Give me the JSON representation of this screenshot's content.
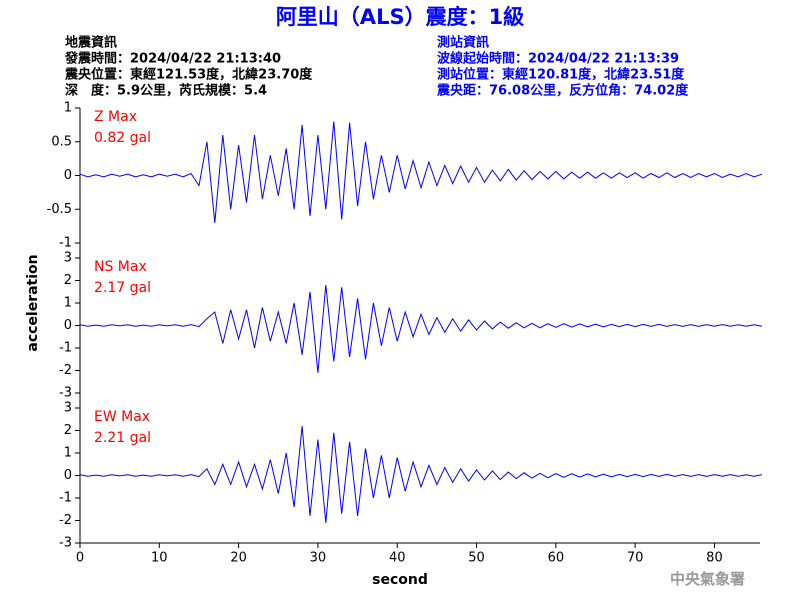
{
  "header": {
    "title": "阿里山（ALS）震度：1級",
    "left": [
      "地震資訊",
      "發震時間：2024/04/22 21:13:40",
      "震央位置：東經121.53度，北緯23.70度",
      "深　度：5.9公里，芮氏規模：5.4"
    ],
    "right": [
      "測站資訊",
      "波線起始時間：2024/04/22 21:13:39",
      "測站位置：東經120.81度，北緯23.51度",
      "震央距：76.08公里，反方位角：74.02度"
    ]
  },
  "ylabel": "acceleration",
  "xlabel": "second",
  "footer": "中央氣象署",
  "chart_data": [
    {
      "type": "line",
      "title": "Z Max",
      "subtitle": "0.82 gal",
      "color": "#0000ff",
      "xlim": [
        0,
        86.5
      ],
      "ylim": [
        -1,
        1
      ],
      "yticks": [
        -1,
        -0.5,
        0,
        0.5,
        1
      ],
      "x": [
        0,
        1,
        2,
        3,
        4,
        5,
        6,
        7,
        8,
        9,
        10,
        11,
        12,
        13,
        14,
        15,
        16,
        17,
        18,
        19,
        20,
        21,
        22,
        23,
        24,
        25,
        26,
        27,
        28,
        29,
        30,
        31,
        32,
        33,
        34,
        35,
        36,
        37,
        38,
        39,
        40,
        41,
        42,
        43,
        44,
        45,
        46,
        47,
        48,
        49,
        50,
        51,
        52,
        53,
        54,
        55,
        56,
        57,
        58,
        59,
        60,
        61,
        62,
        63,
        64,
        65,
        66,
        67,
        68,
        69,
        70,
        71,
        72,
        73,
        74,
        75,
        76,
        77,
        78,
        79,
        80,
        81,
        82,
        83,
        84,
        85,
        86
      ],
      "values": [
        0.02,
        -0.02,
        0.01,
        -0.02,
        0.02,
        -0.01,
        0.02,
        -0.02,
        0.01,
        -0.02,
        0.02,
        -0.01,
        0.02,
        -0.02,
        0.03,
        -0.15,
        0.5,
        -0.7,
        0.6,
        -0.5,
        0.45,
        -0.4,
        0.6,
        -0.35,
        0.3,
        -0.3,
        0.4,
        -0.5,
        0.75,
        -0.6,
        0.6,
        -0.5,
        0.8,
        -0.65,
        0.78,
        -0.45,
        0.5,
        -0.35,
        0.3,
        -0.25,
        0.3,
        -0.2,
        0.22,
        -0.18,
        0.2,
        -0.15,
        0.15,
        -0.12,
        0.14,
        -0.1,
        0.12,
        -0.1,
        0.08,
        -0.08,
        0.09,
        -0.07,
        0.07,
        -0.06,
        0.06,
        -0.05,
        0.06,
        -0.05,
        0.05,
        -0.04,
        0.05,
        -0.04,
        0.04,
        -0.04,
        0.04,
        -0.03,
        0.04,
        -0.04,
        0.03,
        -0.03,
        0.04,
        -0.03,
        0.03,
        -0.03,
        0.03,
        -0.02,
        0.03,
        -0.03,
        0.02,
        -0.02,
        0.03,
        -0.02,
        0.02
      ]
    },
    {
      "type": "line",
      "title": "NS Max",
      "subtitle": "2.17 gal",
      "color": "#0000ff",
      "xlim": [
        0,
        86.5
      ],
      "ylim": [
        -3,
        3
      ],
      "yticks": [
        -3,
        -2,
        -1,
        0,
        1,
        2,
        3
      ],
      "x": [
        0,
        1,
        2,
        3,
        4,
        5,
        6,
        7,
        8,
        9,
        10,
        11,
        12,
        13,
        14,
        15,
        16,
        17,
        18,
        19,
        20,
        21,
        22,
        23,
        24,
        25,
        26,
        27,
        28,
        29,
        30,
        31,
        32,
        33,
        34,
        35,
        36,
        37,
        38,
        39,
        40,
        41,
        42,
        43,
        44,
        45,
        46,
        47,
        48,
        49,
        50,
        51,
        52,
        53,
        54,
        55,
        56,
        57,
        58,
        59,
        60,
        61,
        62,
        63,
        64,
        65,
        66,
        67,
        68,
        69,
        70,
        71,
        72,
        73,
        74,
        75,
        76,
        77,
        78,
        79,
        80,
        81,
        82,
        83,
        84,
        85,
        86
      ],
      "values": [
        0.03,
        -0.03,
        0.02,
        -0.03,
        0.03,
        -0.02,
        0.03,
        -0.03,
        0.02,
        -0.03,
        0.03,
        -0.02,
        0.03,
        -0.03,
        0.04,
        -0.05,
        0.3,
        0.6,
        -0.8,
        0.7,
        -0.6,
        0.7,
        -1.0,
        0.8,
        -0.7,
        0.6,
        -0.8,
        1.0,
        -1.3,
        1.5,
        -2.1,
        1.8,
        -1.6,
        1.7,
        -1.4,
        1.2,
        -1.5,
        1.0,
        -0.9,
        0.8,
        -0.7,
        0.6,
        -0.5,
        0.5,
        -0.4,
        0.35,
        -0.3,
        0.3,
        -0.25,
        0.25,
        -0.2,
        0.2,
        -0.15,
        0.15,
        -0.12,
        0.12,
        -0.1,
        0.1,
        -0.1,
        0.08,
        -0.08,
        0.08,
        -0.07,
        0.07,
        -0.06,
        0.06,
        -0.06,
        0.05,
        -0.05,
        0.05,
        -0.05,
        0.05,
        -0.04,
        0.05,
        -0.04,
        0.04,
        -0.04,
        0.04,
        -0.04,
        0.04,
        -0.03,
        0.04,
        -0.03,
        0.03,
        -0.03,
        0.03,
        -0.03
      ]
    },
    {
      "type": "line",
      "title": "EW Max",
      "subtitle": "2.21 gal",
      "color": "#0000ff",
      "xlim": [
        0,
        86.5
      ],
      "ylim": [
        -3,
        3
      ],
      "yticks": [
        -3,
        -2,
        -1,
        0,
        1,
        2,
        3
      ],
      "xticks": [
        0,
        10,
        20,
        30,
        40,
        50,
        60,
        70,
        80
      ],
      "x": [
        0,
        1,
        2,
        3,
        4,
        5,
        6,
        7,
        8,
        9,
        10,
        11,
        12,
        13,
        14,
        15,
        16,
        17,
        18,
        19,
        20,
        21,
        22,
        23,
        24,
        25,
        26,
        27,
        28,
        29,
        30,
        31,
        32,
        33,
        34,
        35,
        36,
        37,
        38,
        39,
        40,
        41,
        42,
        43,
        44,
        45,
        46,
        47,
        48,
        49,
        50,
        51,
        52,
        53,
        54,
        55,
        56,
        57,
        58,
        59,
        60,
        61,
        62,
        63,
        64,
        65,
        66,
        67,
        68,
        69,
        70,
        71,
        72,
        73,
        74,
        75,
        76,
        77,
        78,
        79,
        80,
        81,
        82,
        83,
        84,
        85,
        86
      ],
      "values": [
        0.03,
        -0.03,
        0.02,
        -0.03,
        0.03,
        -0.02,
        0.03,
        -0.03,
        0.02,
        -0.03,
        0.03,
        -0.02,
        0.03,
        -0.03,
        0.04,
        -0.05,
        0.3,
        -0.4,
        0.5,
        -0.4,
        0.6,
        -0.5,
        0.5,
        -0.6,
        0.7,
        -0.8,
        1.0,
        -1.4,
        2.2,
        -1.8,
        1.6,
        -2.1,
        1.9,
        -1.7,
        1.5,
        -1.8,
        1.2,
        -1.0,
        0.9,
        -1.0,
        0.8,
        -0.7,
        0.6,
        -0.5,
        0.45,
        -0.4,
        0.35,
        -0.3,
        0.3,
        -0.25,
        0.25,
        -0.2,
        0.2,
        -0.18,
        0.15,
        -0.14,
        0.12,
        -0.12,
        0.1,
        -0.1,
        0.09,
        -0.08,
        0.08,
        -0.07,
        0.07,
        -0.06,
        0.06,
        -0.06,
        0.05,
        -0.05,
        0.05,
        -0.05,
        0.05,
        -0.04,
        0.05,
        -0.04,
        0.04,
        -0.04,
        0.04,
        -0.04,
        0.04,
        -0.03,
        0.04,
        -0.03,
        0.03,
        -0.03,
        0.03
      ]
    }
  ]
}
